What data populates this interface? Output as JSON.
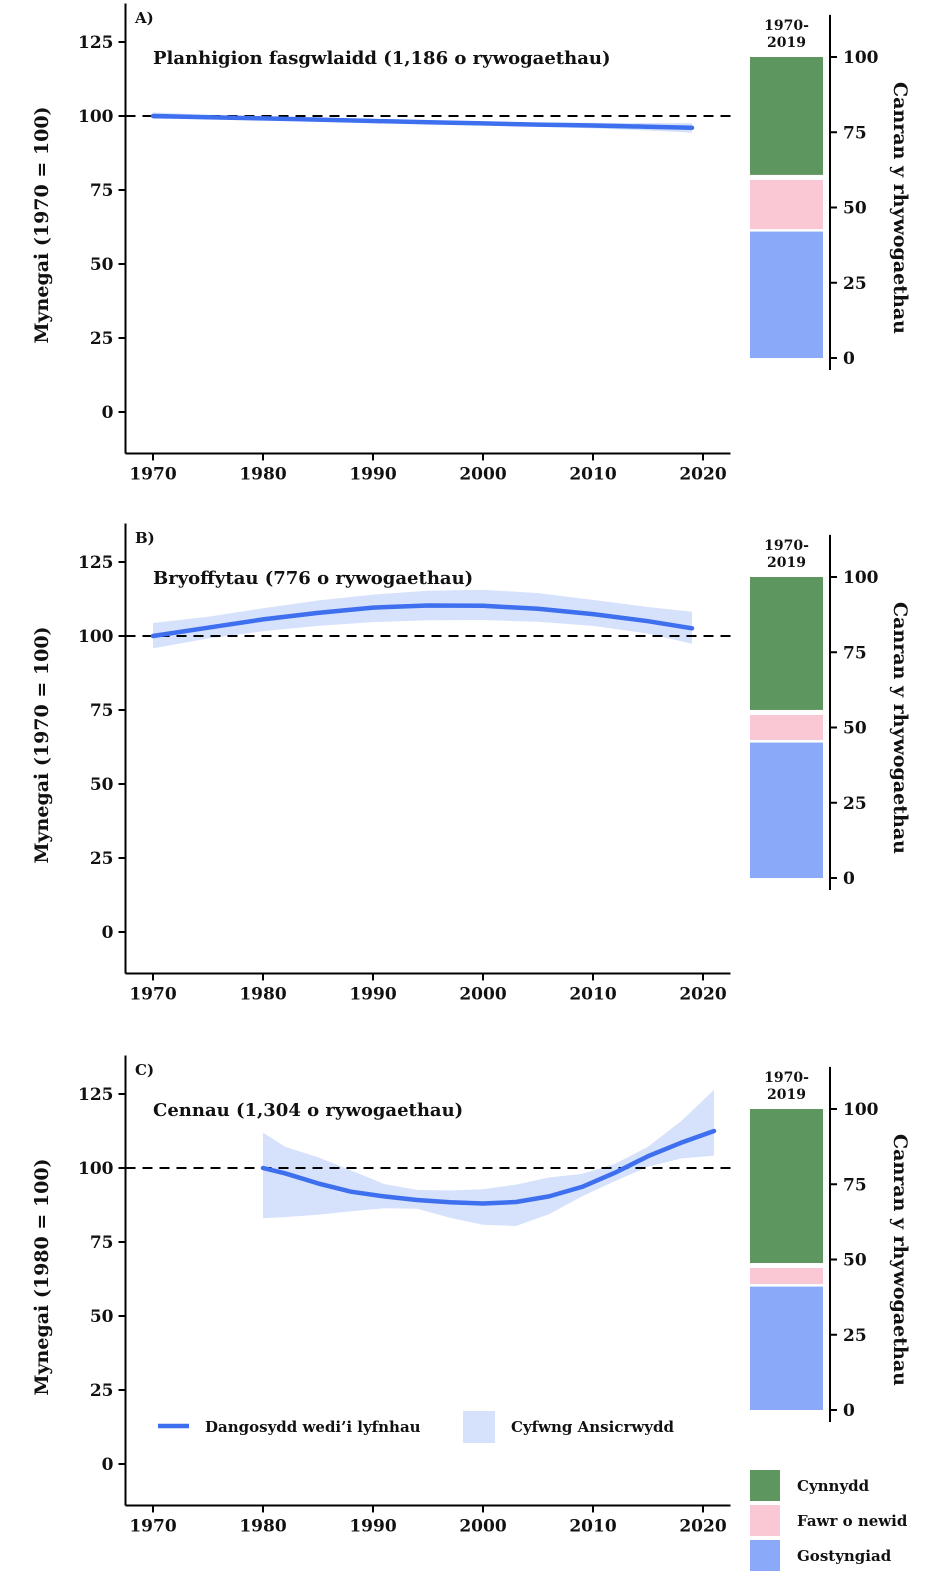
{
  "legend": {
    "smoothed_label": "Dangosydd wedi’i lyfnhau",
    "ci_label": "Cyfwng Ansicrwydd",
    "smoothed_color": "#3d6fee",
    "ci_color": "#d6e1fb"
  },
  "bar_legend": [
    {
      "label": "Cynnydd",
      "color": "#5e9660"
    },
    {
      "label": "Fawr o newid",
      "color": "#fac8d4"
    },
    {
      "label": "Gostyngiad",
      "color": "#8ba9f9"
    }
  ],
  "chart_data": [
    {
      "tag": "A)",
      "title": "Planhigion fasgwlaidd (1,186 o rywogaethau)",
      "type": "line",
      "ylabel": "Mynegai (1970 = 100)",
      "xlabel": "",
      "xlim": [
        1967.5,
        2022.5
      ],
      "ylim": [
        -14,
        138
      ],
      "xticks": [
        1970,
        1980,
        1990,
        2000,
        2010,
        2020
      ],
      "yticks": [
        0,
        25,
        50,
        75,
        100,
        125
      ],
      "baseline": 100,
      "series": [
        {
          "x": [
            1970,
            1975,
            1980,
            1985,
            1990,
            1995,
            2000,
            2005,
            2010,
            2015,
            2019
          ],
          "y": [
            100,
            99.6,
            99.2,
            98.8,
            98.3,
            97.9,
            97.5,
            97.1,
            96.8,
            96.4,
            96.0
          ],
          "lower": [
            99.0,
            98.9,
            98.6,
            98.2,
            97.7,
            97.3,
            96.9,
            96.4,
            95.8,
            95.1,
            94.4
          ],
          "upper": [
            101.2,
            100.4,
            99.8,
            99.4,
            98.9,
            98.5,
            98.1,
            97.8,
            97.7,
            97.6,
            97.6
          ]
        }
      ],
      "bar": {
        "period": "1970-\n2019",
        "ylabel": "Canran y rhywogaethau",
        "ylim": [
          -4,
          114
        ],
        "yticks": [
          0,
          25,
          50,
          75,
          100
        ],
        "increase": 40,
        "little_change": 18,
        "decrease": 42
      }
    },
    {
      "tag": "B)",
      "title": "Bryoffytau (776 o rywogaethau)",
      "type": "line",
      "ylabel": "Mynegai (1970 = 100)",
      "xlabel": "",
      "xlim": [
        1967.5,
        2022.5
      ],
      "ylim": [
        -14,
        138
      ],
      "xticks": [
        1970,
        1980,
        1990,
        2000,
        2010,
        2020
      ],
      "yticks": [
        0,
        25,
        50,
        75,
        100,
        125
      ],
      "baseline": 100,
      "series": [
        {
          "x": [
            1970,
            1975,
            1980,
            1985,
            1990,
            1995,
            2000,
            2005,
            2010,
            2015,
            2019
          ],
          "y": [
            100,
            102.8,
            105.6,
            107.8,
            109.6,
            110.3,
            110.2,
            109.2,
            107.4,
            105.0,
            102.6
          ],
          "lower": [
            95.8,
            99.2,
            101.6,
            103.4,
            104.7,
            105.3,
            105.4,
            104.8,
            103.4,
            100.8,
            97.4
          ],
          "upper": [
            104.4,
            106.5,
            109.4,
            112.0,
            114.0,
            115.3,
            115.6,
            114.5,
            112.2,
            109.8,
            108.2
          ]
        }
      ],
      "bar": {
        "period": "1970-\n2019",
        "ylabel": "Canran y rhywogaethau",
        "ylim": [
          -4,
          114
        ],
        "yticks": [
          0,
          25,
          50,
          75,
          100
        ],
        "increase": 45,
        "little_change": 10,
        "decrease": 45
      }
    },
    {
      "tag": "C)",
      "title": "Cennau (1,304 o rywogaethau)",
      "type": "line",
      "ylabel": "Mynegai (1980 = 100)",
      "xlabel": "",
      "xlim": [
        1967.5,
        2022.5
      ],
      "ylim": [
        -14,
        138
      ],
      "xticks": [
        1970,
        1980,
        1990,
        2000,
        2010,
        2020
      ],
      "yticks": [
        0,
        25,
        50,
        75,
        100,
        125
      ],
      "baseline": 100,
      "series": [
        {
          "x": [
            1980,
            1982,
            1985,
            1988,
            1991,
            1994,
            1997,
            2000,
            2003,
            2006,
            2009,
            2012,
            2015,
            2018,
            2021
          ],
          "y": [
            100,
            98.2,
            94.8,
            92.0,
            90.4,
            89.2,
            88.4,
            88.0,
            88.5,
            90.4,
            93.6,
            98.4,
            104.0,
            108.5,
            112.5
          ],
          "lower": [
            83.0,
            83.4,
            84.2,
            85.4,
            86.4,
            86.2,
            83.2,
            80.8,
            80.4,
            84.4,
            90.4,
            95.6,
            100.4,
            103.2,
            104.2
          ],
          "upper": [
            112.0,
            107.2,
            103.6,
            99.2,
            94.6,
            92.6,
            92.4,
            92.8,
            94.4,
            96.8,
            98.0,
            101.4,
            107.2,
            115.8,
            126.4
          ]
        }
      ],
      "bar": {
        "period": "1970-\n2019",
        "ylabel": "Canran y rhywogaethau",
        "ylim": [
          -4,
          114
        ],
        "yticks": [
          0,
          25,
          50,
          75,
          100
        ],
        "increase": 52,
        "little_change": 7,
        "decrease": 41
      }
    }
  ]
}
